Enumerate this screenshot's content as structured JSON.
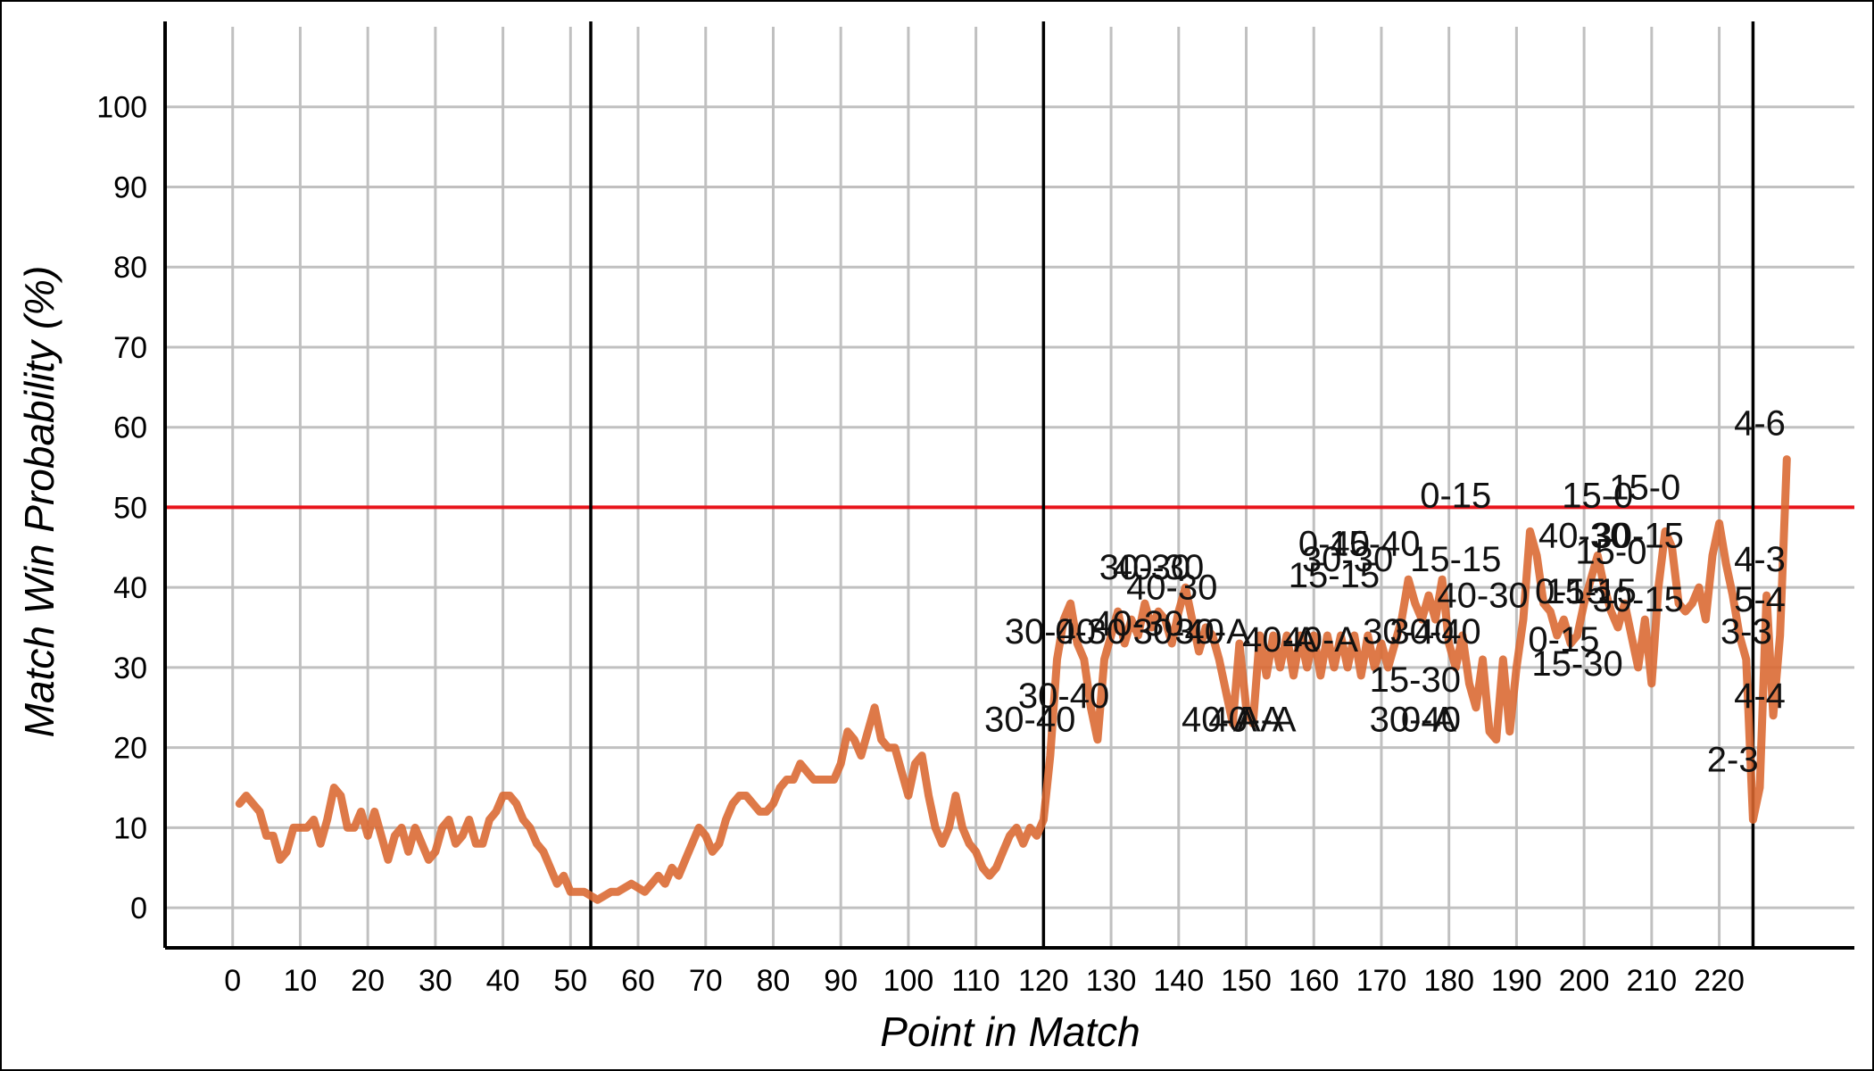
{
  "chart_data": {
    "type": "line",
    "title": "",
    "xlabel": "Point in Match",
    "ylabel": "Match Win Probability (%)",
    "xlim": [
      -10,
      240
    ],
    "ylim": [
      -5,
      110
    ],
    "xticks": [
      0,
      10,
      20,
      30,
      40,
      50,
      60,
      70,
      80,
      90,
      100,
      110,
      120,
      130,
      140,
      150,
      160,
      170,
      180,
      190,
      200,
      210,
      220
    ],
    "yticks": [
      0,
      10,
      20,
      30,
      40,
      50,
      60,
      70,
      80,
      90,
      100
    ],
    "grid": true,
    "reference_line_y": 50,
    "set_boundaries_x": [
      53,
      120,
      225
    ],
    "colors": {
      "line": "#d9662f",
      "reference": "#e8141b",
      "grid": "#c0c0c0",
      "boundary": "#000000"
    },
    "series": [
      {
        "values": [
          [
            1,
            13
          ],
          [
            2,
            14
          ],
          [
            3,
            13
          ],
          [
            4,
            12
          ],
          [
            5,
            9
          ],
          [
            6,
            9
          ],
          [
            7,
            6
          ],
          [
            8,
            7
          ],
          [
            9,
            10
          ],
          [
            10,
            10
          ],
          [
            11,
            10
          ],
          [
            12,
            11
          ],
          [
            13,
            8
          ],
          [
            14,
            11
          ],
          [
            15,
            15
          ],
          [
            16,
            14
          ],
          [
            17,
            10
          ],
          [
            18,
            10
          ],
          [
            19,
            12
          ],
          [
            20,
            9
          ],
          [
            21,
            12
          ],
          [
            22,
            9
          ],
          [
            23,
            6
          ],
          [
            24,
            9
          ],
          [
            25,
            10
          ],
          [
            26,
            7
          ],
          [
            27,
            10
          ],
          [
            28,
            8
          ],
          [
            29,
            6
          ],
          [
            30,
            7
          ],
          [
            31,
            10
          ],
          [
            32,
            11
          ],
          [
            33,
            8
          ],
          [
            34,
            9
          ],
          [
            35,
            11
          ],
          [
            36,
            8
          ],
          [
            37,
            8
          ],
          [
            38,
            11
          ],
          [
            39,
            12
          ],
          [
            40,
            14
          ],
          [
            41,
            14
          ],
          [
            42,
            13
          ],
          [
            43,
            11
          ],
          [
            44,
            10
          ],
          [
            45,
            8
          ],
          [
            46,
            7
          ],
          [
            47,
            5
          ],
          [
            48,
            3
          ],
          [
            49,
            4
          ],
          [
            50,
            2
          ],
          [
            51,
            2
          ],
          [
            52,
            2
          ],
          [
            53,
            1.5
          ],
          [
            54,
            1
          ],
          [
            55,
            1.5
          ],
          [
            56,
            2
          ],
          [
            57,
            2
          ],
          [
            58,
            2.5
          ],
          [
            59,
            3
          ],
          [
            60,
            2.5
          ],
          [
            61,
            2
          ],
          [
            62,
            3
          ],
          [
            63,
            4
          ],
          [
            64,
            3
          ],
          [
            65,
            5
          ],
          [
            66,
            4
          ],
          [
            67,
            6
          ],
          [
            68,
            8
          ],
          [
            69,
            10
          ],
          [
            70,
            9
          ],
          [
            71,
            7
          ],
          [
            72,
            8
          ],
          [
            73,
            11
          ],
          [
            74,
            13
          ],
          [
            75,
            14
          ],
          [
            76,
            14
          ],
          [
            77,
            13
          ],
          [
            78,
            12
          ],
          [
            79,
            12
          ],
          [
            80,
            13
          ],
          [
            81,
            15
          ],
          [
            82,
            16
          ],
          [
            83,
            16
          ],
          [
            84,
            18
          ],
          [
            85,
            17
          ],
          [
            86,
            16
          ],
          [
            87,
            16
          ],
          [
            88,
            16
          ],
          [
            89,
            16
          ],
          [
            90,
            18
          ],
          [
            91,
            22
          ],
          [
            92,
            21
          ],
          [
            93,
            19
          ],
          [
            94,
            22
          ],
          [
            95,
            25
          ],
          [
            96,
            21
          ],
          [
            97,
            20
          ],
          [
            98,
            20
          ],
          [
            99,
            17
          ],
          [
            100,
            14
          ],
          [
            101,
            18
          ],
          [
            102,
            19
          ],
          [
            103,
            14
          ],
          [
            104,
            10
          ],
          [
            105,
            8
          ],
          [
            106,
            10
          ],
          [
            107,
            14
          ],
          [
            108,
            10
          ],
          [
            109,
            8
          ],
          [
            110,
            7
          ],
          [
            111,
            5
          ],
          [
            112,
            4
          ],
          [
            113,
            5
          ],
          [
            114,
            7
          ],
          [
            115,
            9
          ],
          [
            116,
            10
          ],
          [
            117,
            8
          ],
          [
            118,
            10
          ],
          [
            119,
            9
          ],
          [
            120,
            11
          ],
          [
            121,
            19
          ],
          [
            122,
            31
          ],
          [
            123,
            36
          ],
          [
            124,
            38
          ],
          [
            125,
            33
          ],
          [
            126,
            31
          ],
          [
            127,
            25
          ],
          [
            128,
            21
          ],
          [
            129,
            31
          ],
          [
            130,
            34
          ],
          [
            131,
            37
          ],
          [
            132,
            33
          ],
          [
            133,
            36
          ],
          [
            134,
            34
          ],
          [
            135,
            38
          ],
          [
            136,
            35
          ],
          [
            137,
            37
          ],
          [
            138,
            36
          ],
          [
            139,
            33
          ],
          [
            140,
            37
          ],
          [
            141,
            40
          ],
          [
            142,
            36
          ],
          [
            143,
            32
          ],
          [
            144,
            35
          ],
          [
            145,
            34
          ],
          [
            146,
            31
          ],
          [
            147,
            27
          ],
          [
            148,
            23
          ],
          [
            149,
            33
          ],
          [
            150,
            25
          ],
          [
            151,
            23
          ],
          [
            152,
            34
          ],
          [
            153,
            29
          ],
          [
            154,
            34
          ],
          [
            155,
            30
          ],
          [
            156,
            34
          ],
          [
            157,
            29
          ],
          [
            158,
            34
          ],
          [
            159,
            30
          ],
          [
            160,
            34
          ],
          [
            161,
            29
          ],
          [
            162,
            34
          ],
          [
            163,
            30
          ],
          [
            164,
            34
          ],
          [
            165,
            30
          ],
          [
            166,
            34
          ],
          [
            167,
            29
          ],
          [
            168,
            34
          ],
          [
            169,
            30
          ],
          [
            170,
            33
          ],
          [
            171,
            30
          ],
          [
            172,
            33
          ],
          [
            173,
            36
          ],
          [
            174,
            41
          ],
          [
            175,
            38
          ],
          [
            176,
            36
          ],
          [
            177,
            39
          ],
          [
            178,
            36
          ],
          [
            179,
            41
          ],
          [
            180,
            33
          ],
          [
            181,
            30
          ],
          [
            182,
            34
          ],
          [
            183,
            28
          ],
          [
            184,
            25
          ],
          [
            185,
            31
          ],
          [
            186,
            22
          ],
          [
            187,
            21
          ],
          [
            188,
            31
          ],
          [
            189,
            22
          ],
          [
            190,
            30
          ],
          [
            191,
            36
          ],
          [
            192,
            47
          ],
          [
            193,
            44
          ],
          [
            194,
            38
          ],
          [
            195,
            37
          ],
          [
            196,
            34
          ],
          [
            197,
            36
          ],
          [
            198,
            33
          ],
          [
            199,
            34
          ],
          [
            200,
            38
          ],
          [
            201,
            41
          ],
          [
            202,
            44
          ],
          [
            203,
            40
          ],
          [
            204,
            37
          ],
          [
            205,
            35
          ],
          [
            206,
            38
          ],
          [
            207,
            34
          ],
          [
            208,
            30
          ],
          [
            209,
            36
          ],
          [
            210,
            28
          ],
          [
            211,
            40
          ],
          [
            212,
            47
          ],
          [
            213,
            45
          ],
          [
            214,
            38
          ],
          [
            215,
            37
          ],
          [
            216,
            38
          ],
          [
            217,
            40
          ],
          [
            218,
            36
          ],
          [
            219,
            44
          ],
          [
            220,
            48
          ],
          [
            221,
            43
          ],
          [
            222,
            39
          ],
          [
            223,
            34
          ],
          [
            224,
            31
          ],
          [
            225,
            11
          ],
          [
            226,
            15
          ],
          [
            227,
            39
          ],
          [
            228,
            24
          ],
          [
            229,
            34
          ],
          [
            230,
            56
          ]
        ]
      }
    ],
    "annotations": [
      {
        "text": "30-40",
        "x": 118,
        "y": 22
      },
      {
        "text": "30-40",
        "x": 123,
        "y": 25
      },
      {
        "text": "30-40",
        "x": 121,
        "y": 33
      },
      {
        "text": "0-30",
        "x": 127,
        "y": 33
      },
      {
        "text": "30-30",
        "x": 135,
        "y": 41
      },
      {
        "text": "40-30",
        "x": 137,
        "y": 41
      },
      {
        "text": "40-30",
        "x": 139,
        "y": 38.5
      },
      {
        "text": "40-30",
        "x": 134,
        "y": 34
      },
      {
        "text": "30-40",
        "x": 140,
        "y": 33
      },
      {
        "text": "30-A",
        "x": 145,
        "y": 33
      },
      {
        "text": "40-A",
        "x": 146,
        "y": 22
      },
      {
        "text": "40-A",
        "x": 150,
        "y": 22
      },
      {
        "text": "A-A",
        "x": 153,
        "y": 22
      },
      {
        "text": "40-A",
        "x": 155,
        "y": 32
      },
      {
        "text": "40-A",
        "x": 161,
        "y": 32
      },
      {
        "text": "0-40",
        "x": 163,
        "y": 44
      },
      {
        "text": "15-40",
        "x": 169,
        "y": 44
      },
      {
        "text": "30-30",
        "x": 165,
        "y": 42
      },
      {
        "text": "15-15",
        "x": 163,
        "y": 40
      },
      {
        "text": "30-40",
        "x": 174,
        "y": 33
      },
      {
        "text": "15-30",
        "x": 175,
        "y": 27
      },
      {
        "text": "30-40",
        "x": 175,
        "y": 22
      },
      {
        "text": "0-A",
        "x": 177,
        "y": 22
      },
      {
        "text": "30-40",
        "x": 178,
        "y": 33
      },
      {
        "text": "0-15",
        "x": 181,
        "y": 50
      },
      {
        "text": "15-15",
        "x": 181,
        "y": 42
      },
      {
        "text": "40-30",
        "x": 185,
        "y": 37.5
      },
      {
        "text": "40-30",
        "x": 200,
        "y": 45
      },
      {
        "text": "15-0",
        "x": 202,
        "y": 50
      },
      {
        "text": "15-0",
        "x": 209,
        "y": 51
      },
      {
        "text": "30-15",
        "x": 208,
        "y": 45
      },
      {
        "text": "15-0",
        "x": 204,
        "y": 43
      },
      {
        "text": "0-15",
        "x": 198,
        "y": 38
      },
      {
        "text": "15-15",
        "x": 201,
        "y": 38
      },
      {
        "text": "0-15",
        "x": 197,
        "y": 32
      },
      {
        "text": "15-30",
        "x": 199,
        "y": 29
      },
      {
        "text": "30-15",
        "x": 208,
        "y": 37
      },
      {
        "text": "4-6",
        "x": 226,
        "y": 59
      },
      {
        "text": "4-3",
        "x": 226,
        "y": 42
      },
      {
        "text": "5-4",
        "x": 226,
        "y": 37
      },
      {
        "text": "3-3",
        "x": 224,
        "y": 33
      },
      {
        "text": "4-4",
        "x": 226,
        "y": 25
      },
      {
        "text": "2-3",
        "x": 222,
        "y": 17
      }
    ]
  }
}
